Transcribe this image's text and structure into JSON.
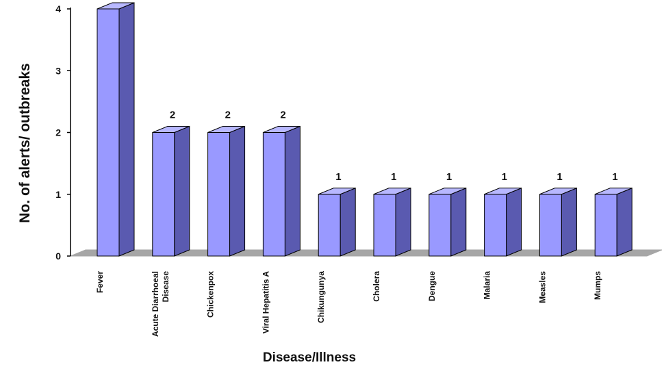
{
  "chart_data": {
    "type": "bar",
    "categories": [
      [
        "Fever"
      ],
      [
        "Acute Diarrhoeal",
        "Disease"
      ],
      [
        "Chickenpox"
      ],
      [
        "Viral Hepatitis A"
      ],
      [
        "Chikungunya"
      ],
      [
        "Cholera"
      ],
      [
        "Dengue"
      ],
      [
        "Malaria"
      ],
      [
        "Measles"
      ],
      [
        "Mumps"
      ]
    ],
    "values": [
      4,
      2,
      2,
      2,
      1,
      1,
      1,
      1,
      1,
      1
    ],
    "data_labels": [
      "",
      "2",
      "2",
      "2",
      "1",
      "1",
      "1",
      "1",
      "1",
      "1"
    ],
    "xlabel": "Disease/Illness",
    "ylabel": "No. of alerts/ outbreaks",
    "ylim": [
      0,
      4
    ],
    "yticks": [
      "0",
      "1",
      "2",
      "3",
      "4"
    ],
    "grid": false,
    "legend": "none",
    "style": "3d",
    "colors": {
      "bar_front": "#9999ff",
      "bar_side": "#5a5ab0",
      "bar_top": "#b8b8ff",
      "floor": "#a6a6a6",
      "outline": "#000000"
    }
  }
}
